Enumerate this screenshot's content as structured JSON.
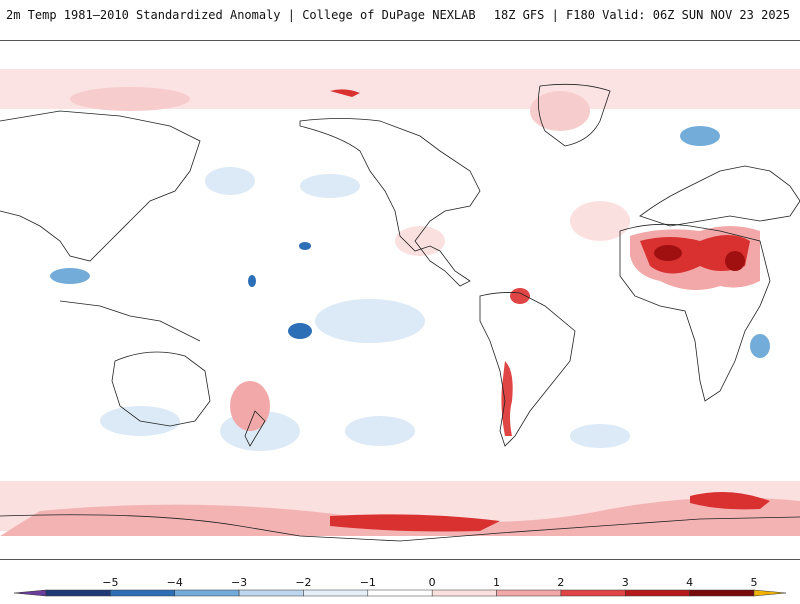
{
  "header": {
    "title": "2m Temp 1981–2010 Standardized Anomaly | College of DuPage NEXLAB",
    "run_info": "18Z GFS | F180 Valid: 06Z SUN NOV 23 2025"
  },
  "colorbar": {
    "labels": [
      "−5",
      "−4",
      "−3",
      "−2",
      "−1",
      "0",
      "1",
      "2",
      "3",
      "4",
      "5"
    ],
    "colors": [
      "#6a3d9a",
      "#203a78",
      "#2c6fb6",
      "#74acd9",
      "#bcd7ee",
      "#e4eef8",
      "#ffffff",
      "#fbe0e0",
      "#f2a8a8",
      "#e04545",
      "#b51a1a",
      "#7a0a0a",
      "#f0b400"
    ]
  }
}
